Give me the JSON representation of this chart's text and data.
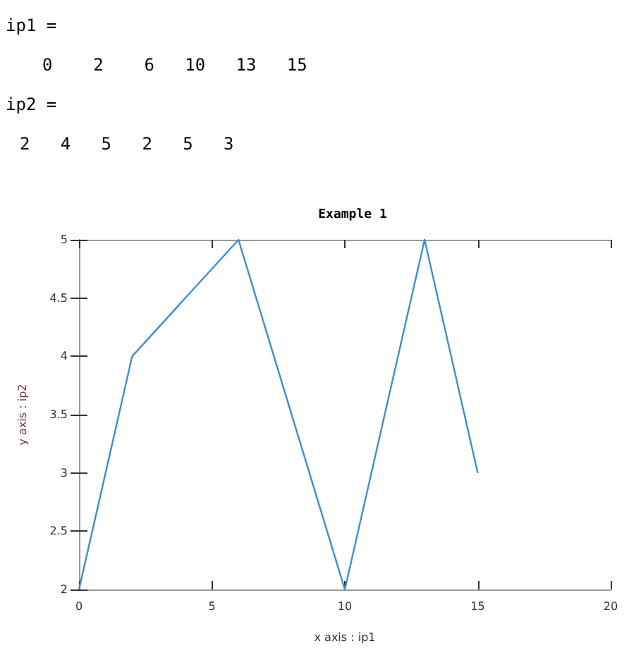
{
  "chart_data": {
    "type": "line",
    "title": "Example 1",
    "xlabel": "x axis : ip1",
    "ylabel": "y axis : ip2",
    "annotations": [
      "ip1 =",
      "0    2    6   10   13   15",
      "ip2 =",
      "2   4   5   2   5   3"
    ],
    "x": [
      0,
      2,
      6,
      10,
      13,
      15
    ],
    "series": [
      {
        "color": "#3b8fd0",
        "values": [
          2,
          4,
          5,
          2,
          5,
          3
        ]
      }
    ],
    "xlim": [
      0,
      20
    ],
    "xticks": [
      0,
      5,
      10,
      15,
      20
    ],
    "ylim": [
      2,
      5
    ],
    "yticks": [
      2,
      2.5,
      3,
      3.5,
      4,
      4.5,
      5
    ],
    "marker": "none",
    "line_style": "solid"
  }
}
